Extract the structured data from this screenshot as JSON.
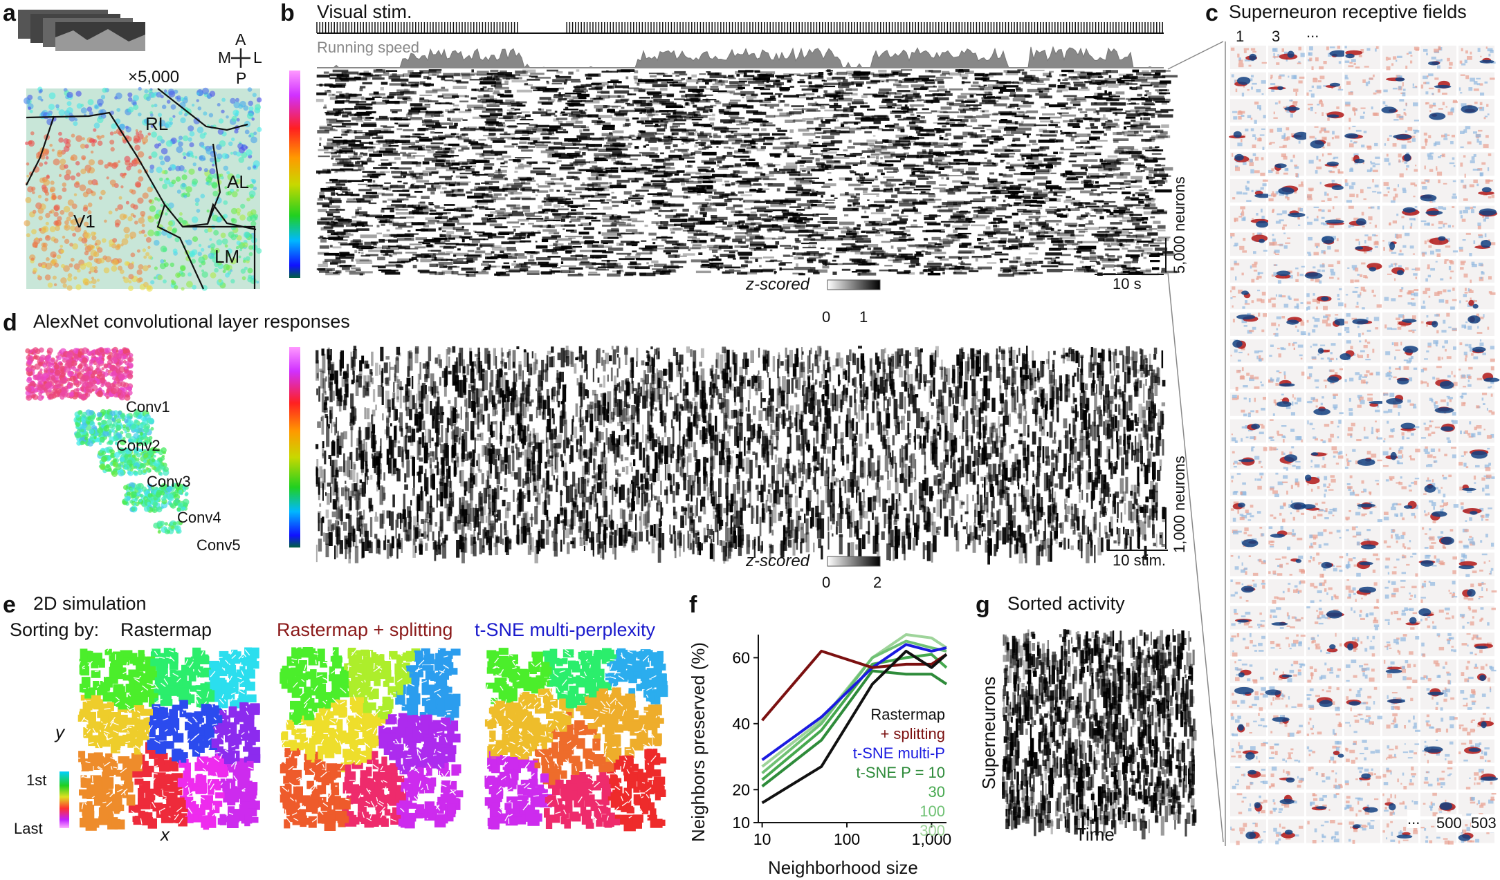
{
  "panels": {
    "a": {
      "label": "a",
      "multiplier": "×5,000",
      "compass": {
        "anterior": "A",
        "posterior": "P",
        "medial": "M",
        "lateral": "L"
      },
      "areas": [
        "RL",
        "AL",
        "V1",
        "LM"
      ]
    },
    "b": {
      "label": "b",
      "title": "Visual stim.",
      "running_label": "Running speed",
      "neurons_label": "5,000 neurons",
      "scalebar_label": "10 s",
      "colorbar": {
        "label": "z-scored",
        "min": "0",
        "max": "1"
      }
    },
    "c": {
      "label": "c",
      "title": "Superneuron receptive fields",
      "top_labels": [
        "1",
        "3",
        "..."
      ],
      "bottom_labels": [
        "...",
        "500",
        "503"
      ],
      "grid": {
        "rows": 30,
        "cols": 7
      }
    },
    "d": {
      "label": "d",
      "title": "AlexNet convolutional layer responses",
      "layers": [
        "Conv1",
        "Conv2",
        "Conv3",
        "Conv4",
        "Conv5"
      ],
      "neurons_label": "1,000 neurons",
      "scalebar_label": "10 stim.",
      "colorbar": {
        "label": "z-scored",
        "min": "0",
        "max": "2"
      }
    },
    "e": {
      "label": "e",
      "title": "2D simulation",
      "sorting_label": "Sorting by:",
      "methods": [
        {
          "name": "Rastermap",
          "color": "#111111"
        },
        {
          "name": "Rastermap + splitting",
          "color": "#8b1a1a"
        },
        {
          "name": "t-SNE multi-perplexity",
          "color": "#1a1acc"
        }
      ],
      "xlabel": "x",
      "ylabel": "y",
      "colorbar_top": "1st",
      "colorbar_bottom": "Last"
    },
    "g": {
      "label": "g",
      "title": "Sorted activity",
      "xlabel": "Time",
      "ylabel": "Superneurons"
    }
  },
  "chart_data": {
    "panel": "f",
    "label": "f",
    "type": "line",
    "xlabel": "Neighborhood size",
    "ylabel": "Neighbors preserved (%)",
    "xscale": "log",
    "xlim": [
      9,
      1500
    ],
    "ylim": [
      10,
      67
    ],
    "xticks": [
      10,
      100,
      1000
    ],
    "xtick_labels": [
      "10",
      "100",
      "1,000"
    ],
    "yticks": [
      10,
      20,
      40,
      60
    ],
    "legend_position": "right, inside plot",
    "x": [
      10,
      50,
      200,
      500,
      1000,
      1500
    ],
    "series": [
      {
        "name": "Rastermap",
        "color": "#111111",
        "values": [
          16,
          27,
          52,
          62,
          57,
          61
        ]
      },
      {
        "name": "+ splitting",
        "color": "#7b1010",
        "values": [
          41,
          62,
          57,
          58,
          58,
          61
        ]
      },
      {
        "name": "t-SNE multi-P",
        "color": "#1a1ae0",
        "values": [
          29,
          42,
          57,
          64,
          62,
          63
        ]
      },
      {
        "name": "t-SNE P = 10",
        "color": "#2e8b3a",
        "values": [
          21,
          35,
          56,
          55,
          55,
          52
        ]
      },
      {
        "name": "30",
        "color": "#45a84e",
        "values": [
          23,
          38,
          58,
          60,
          61,
          57
        ]
      },
      {
        "name": "100",
        "color": "#6fc174",
        "values": [
          25,
          40,
          60,
          65,
          63,
          62
        ]
      },
      {
        "name": "300",
        "color": "#9ed49a",
        "values": [
          27,
          41,
          60,
          67,
          66,
          63
        ]
      }
    ]
  }
}
